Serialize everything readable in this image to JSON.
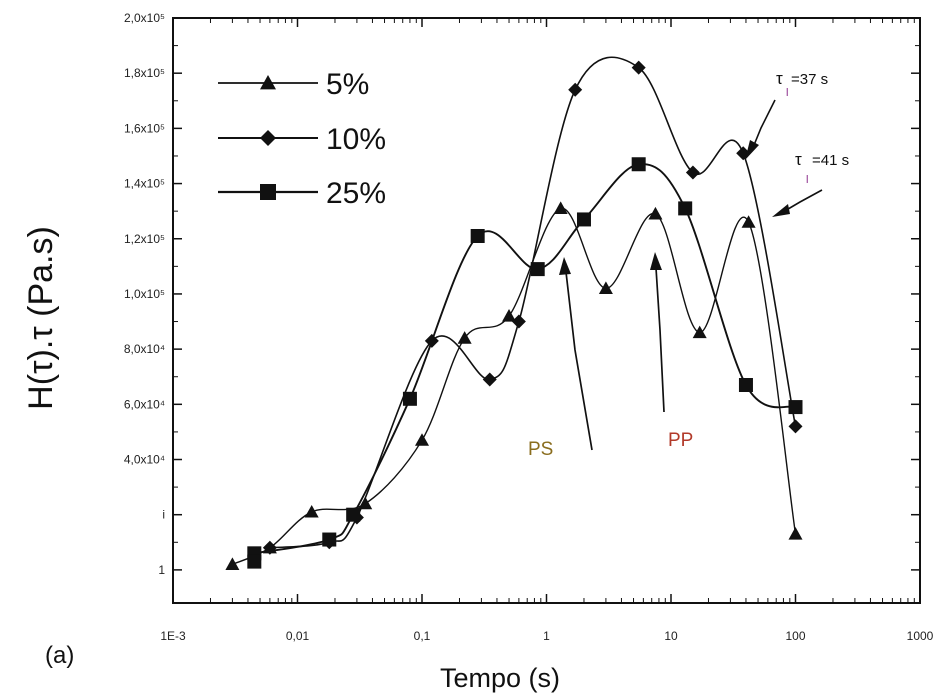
{
  "chart_data": {
    "type": "scatter",
    "xlabel": "Tempo (s)",
    "ylabel": "H(τ).τ (Pa.s)",
    "xscale": "log",
    "xlim": [
      0.001,
      1000
    ],
    "ylim": [
      -12000,
      200000
    ],
    "x_tick_labels": [
      "1E-3",
      "0,01",
      "0,1",
      "1",
      "10",
      "100",
      "1000"
    ],
    "y_tick_labels": [
      "1",
      "i",
      "4,0x10⁴",
      "6,0x10⁴",
      "8,0x10⁴",
      "1,0x10⁵",
      "1,2x10⁵",
      "1,4x10⁵",
      "1,6x10⁵",
      "1,8x10⁵",
      "2,0x10⁵"
    ],
    "legend_position": "top-left",
    "series": [
      {
        "name": "5%",
        "marker": "triangle",
        "x": [
          0.003,
          0.006,
          0.013,
          0.035,
          0.1,
          0.22,
          0.5,
          1.3,
          3,
          7.5,
          17,
          42,
          100
        ],
        "y": [
          2000,
          8000,
          21000,
          24000,
          47000,
          84000,
          92000,
          131000,
          102000,
          129000,
          86000,
          126000,
          13000
        ]
      },
      {
        "name": "10%",
        "marker": "diamond",
        "x": [
          0.006,
          0.018,
          0.03,
          0.12,
          0.35,
          0.6,
          1.7,
          5.5,
          15,
          38,
          100
        ],
        "y": [
          8000,
          10000,
          19000,
          83000,
          69000,
          90000,
          174000,
          182000,
          144000,
          151000,
          52000
        ]
      },
      {
        "name": "25%",
        "marker": "square",
        "x": [
          0.0045,
          0.0045,
          0.018,
          0.028,
          0.08,
          0.28,
          0.85,
          2,
          5.5,
          13,
          40,
          100
        ],
        "y": [
          6000,
          3000,
          11000,
          20000,
          62000,
          121000,
          109000,
          127000,
          147000,
          131000,
          67000,
          59000
        ]
      }
    ],
    "annotations": {
      "tau1": "τ",
      "tau1_sub": "l",
      "tau1_text": "=37 s",
      "tau2": "τ",
      "tau2_sub": "l",
      "tau2_text": "=41 s",
      "ps": "PS",
      "pp": "PP",
      "panel": "(a)"
    },
    "colors": {
      "axis": "#111111",
      "series": "#111111",
      "ps_label": "#8a6d1e",
      "pp_label": "#b23a2a",
      "tau_sub": "#8a2a8a"
    }
  }
}
